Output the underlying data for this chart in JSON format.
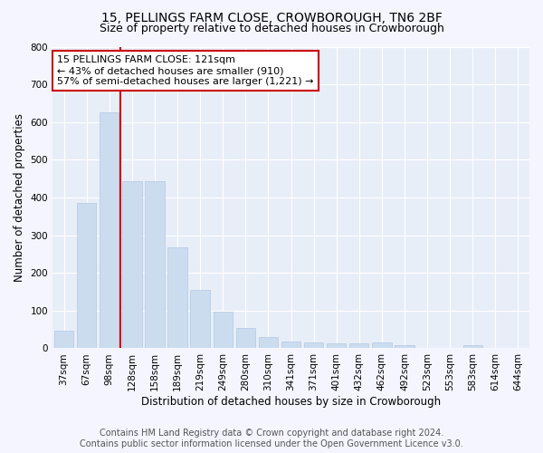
{
  "title": "15, PELLINGS FARM CLOSE, CROWBOROUGH, TN6 2BF",
  "subtitle": "Size of property relative to detached houses in Crowborough",
  "xlabel": "Distribution of detached houses by size in Crowborough",
  "ylabel": "Number of detached properties",
  "categories": [
    "37sqm",
    "67sqm",
    "98sqm",
    "128sqm",
    "158sqm",
    "189sqm",
    "219sqm",
    "249sqm",
    "280sqm",
    "310sqm",
    "341sqm",
    "371sqm",
    "401sqm",
    "432sqm",
    "462sqm",
    "492sqm",
    "523sqm",
    "553sqm",
    "583sqm",
    "614sqm",
    "644sqm"
  ],
  "values": [
    47,
    385,
    625,
    443,
    443,
    268,
    155,
    98,
    53,
    29,
    18,
    15,
    12,
    12,
    15,
    8,
    0,
    0,
    8,
    0,
    0
  ],
  "bar_color": "#ccdcef",
  "bar_edge_color": "#b0c8e4",
  "vline_x_index": 2,
  "vline_color": "#cc0000",
  "annotation_text": "15 PELLINGS FARM CLOSE: 121sqm\n← 43% of detached houses are smaller (910)\n57% of semi-detached houses are larger (1,221) →",
  "annotation_box_color": "#cc0000",
  "ylim": [
    0,
    800
  ],
  "yticks": [
    0,
    100,
    200,
    300,
    400,
    500,
    600,
    700,
    800
  ],
  "footer_line1": "Contains HM Land Registry data © Crown copyright and database right 2024.",
  "footer_line2": "Contains public sector information licensed under the Open Government Licence v3.0.",
  "plot_bg_color": "#e8eef8",
  "fig_bg_color": "#f5f5ff",
  "grid_color": "#ffffff",
  "title_fontsize": 10,
  "subtitle_fontsize": 9,
  "axis_label_fontsize": 8.5,
  "tick_fontsize": 7.5,
  "annotation_fontsize": 8,
  "footer_fontsize": 7
}
